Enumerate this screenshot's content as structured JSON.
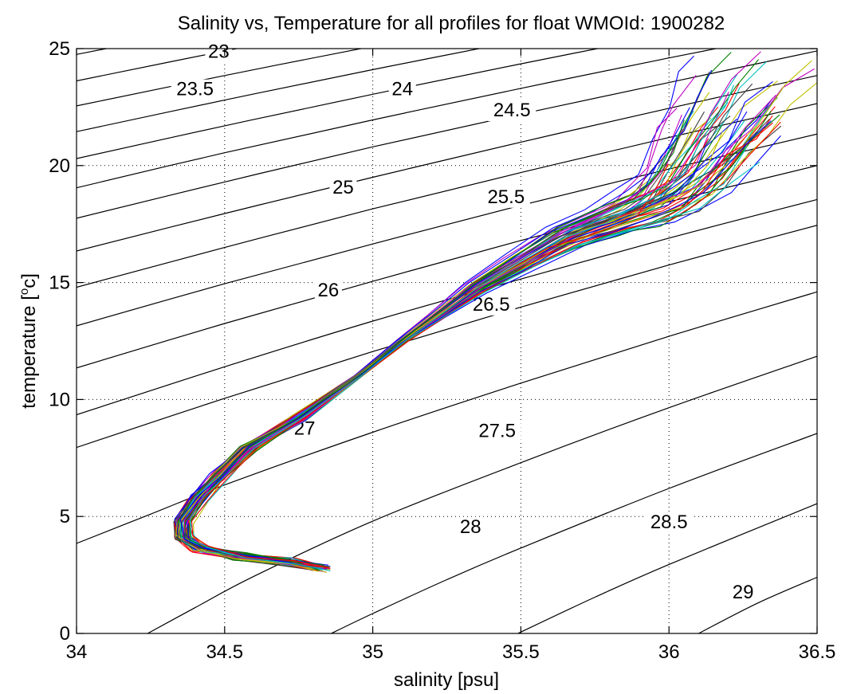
{
  "chart_data": {
    "type": "line",
    "title": "Salinity vs, Temperature for all profiles for float WMOId: 1900282",
    "xlabel": "salinity [psu]",
    "ylabel_main": "temperature [",
    "ylabel_sup": "o",
    "ylabel_tail": "c]",
    "xlim": [
      34,
      36.5
    ],
    "ylim": [
      0,
      25
    ],
    "grid": true,
    "x_ticks": [
      {
        "value": 34,
        "label": "34"
      },
      {
        "value": 34.5,
        "label": "34.5"
      },
      {
        "value": 35,
        "label": "35"
      },
      {
        "value": 35.5,
        "label": "35.5"
      },
      {
        "value": 36,
        "label": "36"
      },
      {
        "value": 36.5,
        "label": "36.5"
      }
    ],
    "y_ticks": [
      {
        "value": 0,
        "label": "0"
      },
      {
        "value": 5,
        "label": "5"
      },
      {
        "value": 10,
        "label": "10"
      },
      {
        "value": 15,
        "label": "15"
      },
      {
        "value": 20,
        "label": "20"
      },
      {
        "value": 25,
        "label": "25"
      }
    ],
    "density_contours": [
      {
        "label": "23",
        "points": [
          [
            34.0,
            24.75
          ],
          [
            34.5,
            25.99
          ]
        ],
        "label_at": [
          34.48,
          24.6
        ]
      },
      {
        "label": "23.5",
        "points": [
          [
            34.0,
            23.62
          ],
          [
            34.5,
            24.9
          ],
          [
            35.0,
            26.1
          ]
        ],
        "label_at": [
          34.4,
          23.0
        ]
      },
      {
        "label": "24",
        "points": [
          [
            34.0,
            22.55
          ],
          [
            34.5,
            23.85
          ],
          [
            35.0,
            25.1
          ],
          [
            35.2,
            25.55
          ]
        ],
        "label_at": [
          35.1,
          23.0
        ]
      },
      {
        "label": "24.5",
        "points": [
          [
            34.0,
            21.45
          ],
          [
            34.5,
            22.8
          ],
          [
            35.0,
            24.1
          ],
          [
            35.5,
            25.35
          ],
          [
            35.6,
            25.6
          ]
        ],
        "label_at": [
          35.47,
          22.1
        ]
      },
      {
        "label": "25",
        "points": [
          [
            34.0,
            20.3
          ],
          [
            34.5,
            21.7
          ],
          [
            35.0,
            23.05
          ],
          [
            35.5,
            24.35
          ],
          [
            36.0,
            25.6
          ]
        ],
        "label_at": [
          34.9,
          18.8
        ]
      },
      {
        "label": "25.5",
        "points": [
          [
            34.0,
            19.05
          ],
          [
            34.5,
            20.55
          ],
          [
            35.0,
            21.95
          ],
          [
            35.5,
            23.3
          ],
          [
            36.0,
            24.6
          ],
          [
            36.5,
            25.85
          ]
        ],
        "label_at": [
          35.45,
          18.4
        ]
      },
      {
        "label": "26",
        "points": [
          [
            34.0,
            17.75
          ],
          [
            34.5,
            19.3
          ],
          [
            35.0,
            20.8
          ],
          [
            35.5,
            22.2
          ],
          [
            36.0,
            23.55
          ],
          [
            36.5,
            24.9
          ]
        ],
        "label_at": [
          34.85,
          14.4
        ]
      },
      {
        "label": "26.5",
        "points": [
          [
            34.0,
            16.35
          ],
          [
            34.5,
            17.95
          ],
          [
            35.0,
            19.5
          ],
          [
            35.5,
            21.0
          ],
          [
            36.0,
            22.45
          ],
          [
            36.5,
            23.85
          ]
        ],
        "label_at": [
          35.4,
          13.8
        ]
      },
      {
        "label": "27",
        "points": [
          [
            34.0,
            14.8
          ],
          [
            34.5,
            16.5
          ],
          [
            35.0,
            18.15
          ],
          [
            35.5,
            19.7
          ],
          [
            36.0,
            21.2
          ],
          [
            36.5,
            22.65
          ]
        ],
        "label_at": [
          34.77,
          8.5
        ]
      },
      {
        "label": "27.5",
        "points": [
          [
            34.0,
            13.15
          ],
          [
            34.5,
            14.95
          ],
          [
            35.0,
            16.65
          ],
          [
            35.5,
            18.3
          ],
          [
            36.0,
            19.85
          ],
          [
            36.5,
            21.35
          ]
        ],
        "label_at": [
          35.42,
          8.4
        ]
      },
      {
        "label": "28",
        "points": [
          [
            34.0,
            11.35
          ],
          [
            34.5,
            13.25
          ],
          [
            35.0,
            15.05
          ],
          [
            35.5,
            16.8
          ],
          [
            36.0,
            18.45
          ],
          [
            36.5,
            20.0
          ]
        ],
        "label_at": [
          35.33,
          4.3
        ]
      },
      {
        "label": "28.5",
        "points": [
          [
            34.0,
            9.35
          ],
          [
            34.5,
            11.4
          ],
          [
            35.0,
            13.35
          ],
          [
            35.5,
            15.15
          ],
          [
            36.0,
            16.9
          ],
          [
            36.5,
            18.55
          ]
        ],
        "label_at": [
          36.0,
          4.5
        ]
      },
      {
        "label": "29",
        "points": [
          [
            34.0,
            7.95
          ],
          [
            34.5,
            10.05
          ],
          [
            35.0,
            12.05
          ],
          [
            35.5,
            13.95
          ],
          [
            36.0,
            15.75
          ],
          [
            36.5,
            17.45
          ]
        ],
        "label_at": [
          36.25,
          1.5
        ]
      },
      {
        "label": "",
        "points": [
          [
            34.0,
            3.85
          ],
          [
            34.25,
            5.1
          ],
          [
            34.5,
            6.35
          ],
          [
            35.0,
            8.6
          ],
          [
            35.5,
            10.7
          ],
          [
            36.0,
            12.7
          ],
          [
            36.5,
            14.6
          ]
        ],
        "label_at": null
      },
      {
        "label": "",
        "points": [
          [
            34.24,
            0.0
          ],
          [
            34.4,
            1.1
          ],
          [
            34.6,
            2.45
          ],
          [
            35.0,
            4.8
          ],
          [
            35.5,
            7.3
          ],
          [
            36.0,
            9.65
          ],
          [
            36.5,
            11.85
          ]
        ],
        "label_at": null
      },
      {
        "label": "",
        "points": [
          [
            34.86,
            0.0
          ],
          [
            35.0,
            0.85
          ],
          [
            35.25,
            2.3
          ],
          [
            35.5,
            3.65
          ],
          [
            36.0,
            6.2
          ],
          [
            36.5,
            8.55
          ]
        ],
        "label_at": null
      },
      {
        "label": "",
        "points": [
          [
            35.49,
            0.0
          ],
          [
            35.75,
            1.55
          ],
          [
            36.0,
            2.95
          ],
          [
            36.5,
            5.55
          ]
        ],
        "label_at": null
      },
      {
        "label": "",
        "points": [
          [
            36.1,
            0.0
          ],
          [
            36.3,
            1.3
          ],
          [
            36.5,
            2.4
          ]
        ],
        "label_at": null
      }
    ],
    "profile_count": 60,
    "profile_colors": [
      "#0000ff",
      "#008000",
      "#ff0000",
      "#00bfbf",
      "#bf00bf",
      "#bfbf00",
      "#404040"
    ],
    "mean_profile": [
      [
        34.83,
        2.8
      ],
      [
        34.72,
        3.05
      ],
      [
        34.55,
        3.3
      ],
      [
        34.42,
        3.6
      ],
      [
        34.36,
        4.1
      ],
      [
        34.36,
        4.8
      ],
      [
        34.41,
        5.8
      ],
      [
        34.48,
        6.7
      ],
      [
        34.58,
        7.9
      ],
      [
        34.75,
        9.2
      ],
      [
        34.95,
        11.0
      ],
      [
        35.1,
        12.5
      ],
      [
        35.22,
        13.6
      ],
      [
        35.35,
        14.8
      ],
      [
        35.5,
        15.9
      ],
      [
        35.65,
        17.0
      ],
      [
        35.8,
        17.7
      ],
      [
        35.92,
        18.3
      ],
      [
        36.0,
        18.9
      ],
      [
        36.08,
        20.0
      ],
      [
        36.15,
        21.3
      ],
      [
        36.22,
        22.6
      ],
      [
        36.3,
        23.6
      ]
    ]
  }
}
